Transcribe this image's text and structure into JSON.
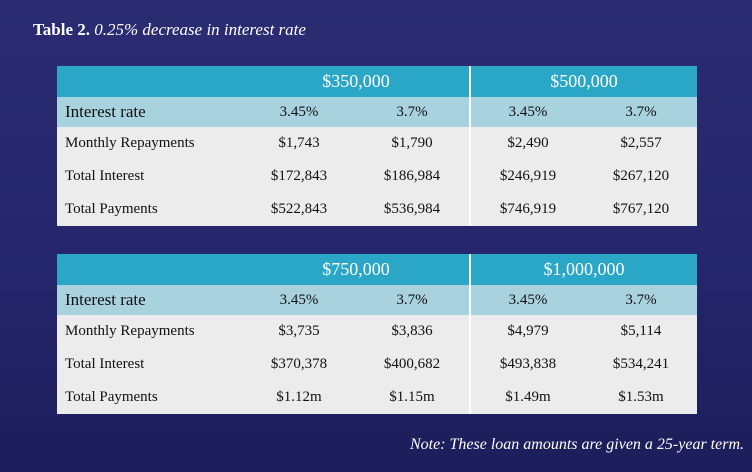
{
  "header": {
    "label": "Table 2.",
    "title": "0.25% decrease in interest rate"
  },
  "tables": [
    {
      "amounts": [
        "$350,000",
        "$500,000"
      ],
      "rows": [
        {
          "label": "Interest rate",
          "values": [
            "3.45%",
            "3.7%",
            "3.45%",
            "3.7%"
          ]
        },
        {
          "label": "Monthly Repayments",
          "values": [
            "$1,743",
            "$1,790",
            "$2,490",
            "$2,557"
          ]
        },
        {
          "label": "Total Interest",
          "values": [
            "$172,843",
            "$186,984",
            "$246,919",
            "$267,120"
          ]
        },
        {
          "label": "Total Payments",
          "values": [
            "$522,843",
            "$536,984",
            "$746,919",
            "$767,120"
          ]
        }
      ]
    },
    {
      "amounts": [
        "$750,000",
        "$1,000,000"
      ],
      "rows": [
        {
          "label": "Interest rate",
          "values": [
            "3.45%",
            "3.7%",
            "3.45%",
            "3.7%"
          ]
        },
        {
          "label": "Monthly Repayments",
          "values": [
            "$3,735",
            "$3,836",
            "$4,979",
            "$5,114"
          ]
        },
        {
          "label": "Total Interest",
          "values": [
            "$370,378",
            "$400,682",
            "$493,838",
            "$534,241"
          ]
        },
        {
          "label": "Total Payments",
          "values": [
            "$1.12m",
            "$1.15m",
            "$1.49m",
            "$1.53m"
          ]
        }
      ]
    }
  ],
  "note": "Note: These loan amounts are given a 25-year term."
}
